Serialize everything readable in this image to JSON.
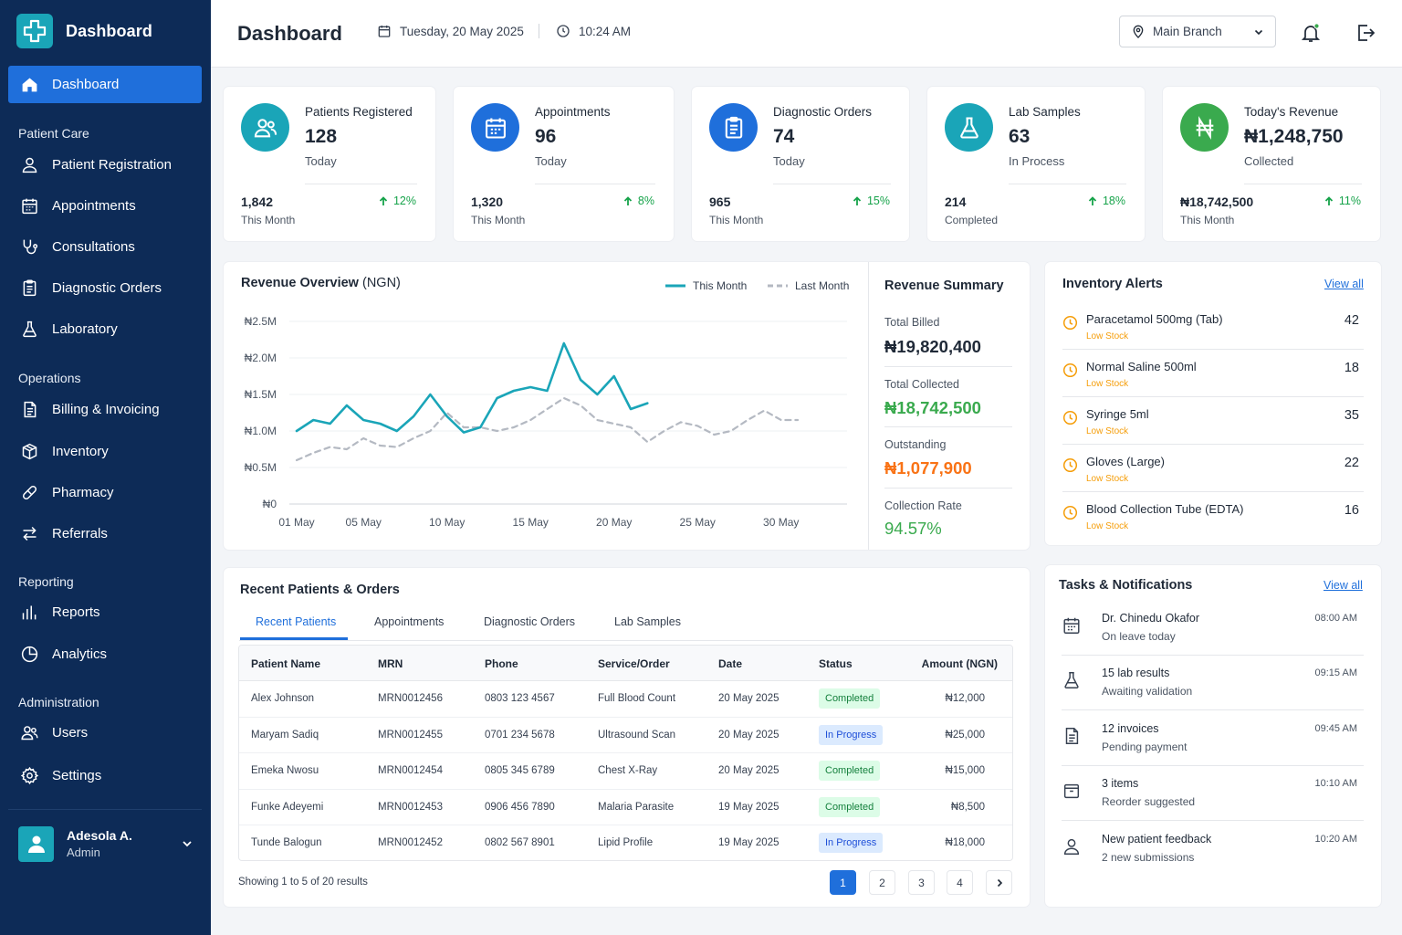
{
  "brand": {
    "name": "Dashboard"
  },
  "sidebar": {
    "active": {
      "label": "Dashboard",
      "icon": "home-icon"
    },
    "groups": [
      {
        "title": "Patient Care",
        "items": [
          {
            "label": "Patient Registration",
            "icon": "user-icon"
          },
          {
            "label": "Appointments",
            "icon": "calendar-icon"
          },
          {
            "label": "Consultations",
            "icon": "stethoscope-icon"
          },
          {
            "label": "Diagnostic Orders",
            "icon": "clipboard-icon"
          },
          {
            "label": "Laboratory",
            "icon": "flask-icon"
          }
        ]
      },
      {
        "title": "Operations",
        "items": [
          {
            "label": "Billing & Invoicing",
            "icon": "invoice-icon"
          },
          {
            "label": "Inventory",
            "icon": "box-icon"
          },
          {
            "label": "Pharmacy",
            "icon": "pill-icon"
          },
          {
            "label": "Referrals",
            "icon": "arrows-icon"
          }
        ]
      },
      {
        "title": "Reporting",
        "items": [
          {
            "label": "Reports",
            "icon": "bar-chart-icon"
          },
          {
            "label": "Analytics",
            "icon": "pie-chart-icon"
          }
        ]
      },
      {
        "title": "Administration",
        "items": [
          {
            "label": "Users",
            "icon": "users-icon"
          },
          {
            "label": "Settings",
            "icon": "gear-icon"
          }
        ]
      }
    ],
    "user": {
      "name": "Adesola A.",
      "role": "Admin"
    }
  },
  "header": {
    "title": "Dashboard",
    "date": "Tuesday, 20 May 2025",
    "time": "10:24 AM",
    "branch": "Main Branch"
  },
  "stats": [
    {
      "label": "Patients Registered",
      "value": "128",
      "sub": "Today",
      "month_value": "1,842",
      "month_label": "This Month",
      "change": "12%",
      "color": "#1aa5b8",
      "icon": "users-icon"
    },
    {
      "label": "Appointments",
      "value": "96",
      "sub": "Today",
      "month_value": "1,320",
      "month_label": "This Month",
      "change": "8%",
      "color": "#1f6fdb",
      "icon": "calendar-icon"
    },
    {
      "label": "Diagnostic Orders",
      "value": "74",
      "sub": "Today",
      "month_value": "965",
      "month_label": "This Month",
      "change": "15%",
      "color": "#1f6fdb",
      "icon": "clipboard-icon"
    },
    {
      "label": "Lab Samples",
      "value": "63",
      "sub": "In Process",
      "month_value": "214",
      "month_label": "Completed",
      "change": "18%",
      "color": "#1aa5b8",
      "icon": "flask-icon"
    },
    {
      "label": "Today's Revenue",
      "value": "₦1,248,750",
      "sub": "Collected",
      "month_value": "₦18,742,500",
      "month_label": "This Month",
      "change": "11%",
      "color": "#3aaa4e",
      "icon": "naira-icon"
    }
  ],
  "revenue": {
    "title": "Revenue Overview",
    "unit": "(NGN)",
    "legend": {
      "this_month": "This Month",
      "last_month": "Last Month"
    }
  },
  "chart_data": {
    "type": "line",
    "title": "Revenue Overview (NGN)",
    "y_ticks": [
      "₦2.5M",
      "₦2.0M",
      "₦1.5M",
      "₦1.0M",
      "₦0.5M",
      "₦0"
    ],
    "x_ticks": [
      "01 May",
      "05 May",
      "10 May",
      "15 May",
      "20 May",
      "25 May",
      "30 May"
    ],
    "x_tick_days": [
      1,
      5,
      10,
      15,
      20,
      25,
      30
    ],
    "ylim": [
      0,
      2500000
    ],
    "series": [
      {
        "name": "This Month",
        "color": "#1aa5b8",
        "style": "solid",
        "x": [
          1,
          2,
          3,
          4,
          5,
          6,
          7,
          8,
          9,
          10,
          11,
          12,
          13,
          14,
          15,
          16,
          17,
          18,
          19,
          20,
          21,
          22
        ],
        "y": [
          1000000,
          1150000,
          1100000,
          1350000,
          1150000,
          1100000,
          1000000,
          1200000,
          1500000,
          1200000,
          980000,
          1050000,
          1450000,
          1550000,
          1600000,
          1550000,
          2200000,
          1700000,
          1500000,
          1750000,
          1300000,
          1380000
        ]
      },
      {
        "name": "Last Month",
        "color": "#b4b9c2",
        "style": "dashed",
        "x": [
          1,
          2,
          3,
          4,
          5,
          6,
          7,
          8,
          9,
          10,
          11,
          12,
          13,
          14,
          15,
          16,
          17,
          18,
          19,
          20,
          21,
          22,
          23,
          24,
          25,
          26,
          27,
          28,
          29,
          30,
          31
        ],
        "y": [
          600000,
          700000,
          780000,
          750000,
          900000,
          800000,
          780000,
          900000,
          1000000,
          1250000,
          1050000,
          1050000,
          1000000,
          1050000,
          1150000,
          1300000,
          1450000,
          1350000,
          1150000,
          1100000,
          1050000,
          850000,
          1000000,
          1120000,
          1070000,
          950000,
          1000000,
          1150000,
          1280000,
          1150000,
          1150000
        ]
      }
    ]
  },
  "summary": {
    "title": "Revenue Summary",
    "items": [
      {
        "label": "Total Billed",
        "value": "₦19,820,400",
        "color": "#1f2937"
      },
      {
        "label": "Total Collected",
        "value": "₦18,742,500",
        "color": "#3aaa4e"
      },
      {
        "label": "Outstanding",
        "value": "₦1,077,900",
        "color": "#f97316"
      },
      {
        "label": "Collection Rate",
        "value": "94.57%",
        "color": "#3aaa4e"
      }
    ]
  },
  "inventory": {
    "title": "Inventory Alerts",
    "view_all": "View all",
    "items": [
      {
        "name": "Paracetamol 500mg (Tab)",
        "tag": "Low Stock",
        "qty": "42"
      },
      {
        "name": "Normal Saline 500ml",
        "tag": "Low Stock",
        "qty": "18"
      },
      {
        "name": "Syringe 5ml",
        "tag": "Low Stock",
        "qty": "35"
      },
      {
        "name": "Gloves (Large)",
        "tag": "Low Stock",
        "qty": "22"
      },
      {
        "name": "Blood Collection Tube (EDTA)",
        "tag": "Low Stock",
        "qty": "16"
      }
    ]
  },
  "recent": {
    "title": "Recent Patients & Orders",
    "tabs": [
      "Recent Patients",
      "Appointments",
      "Diagnostic Orders",
      "Lab Samples"
    ],
    "columns": [
      "Patient Name",
      "MRN",
      "Phone",
      "Service/Order",
      "Date",
      "Status",
      "Amount (NGN)"
    ],
    "rows": [
      {
        "name": "Alex Johnson",
        "mrn": "MRN0012456",
        "phone": "0803 123 4567",
        "service": "Full Blood Count",
        "date": "20 May 2025",
        "status": "Completed",
        "amount": "₦12,000"
      },
      {
        "name": "Maryam Sadiq",
        "mrn": "MRN0012455",
        "phone": "0701 234 5678",
        "service": "Ultrasound Scan",
        "date": "20 May 2025",
        "status": "In Progress",
        "amount": "₦25,000"
      },
      {
        "name": "Emeka Nwosu",
        "mrn": "MRN0012454",
        "phone": "0805 345 6789",
        "service": "Chest X-Ray",
        "date": "20 May 2025",
        "status": "Completed",
        "amount": "₦15,000"
      },
      {
        "name": "Funke Adeyemi",
        "mrn": "MRN0012453",
        "phone": "0906 456 7890",
        "service": "Malaria Parasite",
        "date": "19 May 2025",
        "status": "Completed",
        "amount": "₦8,500"
      },
      {
        "name": "Tunde Balogun",
        "mrn": "MRN0012452",
        "phone": "0802 567 8901",
        "service": "Lipid Profile",
        "date": "19 May 2025",
        "status": "In Progress",
        "amount": "₦18,000"
      }
    ],
    "pagination": {
      "info": "Showing 1 to 5 of 20 results",
      "pages": [
        "1",
        "2",
        "3",
        "4"
      ],
      "current": "1"
    }
  },
  "tasks": {
    "title": "Tasks & Notifications",
    "view_all": "View all",
    "items": [
      {
        "title": "Dr. Chinedu Okafor",
        "sub": "On leave today",
        "time": "08:00 AM",
        "icon": "calendar-icon"
      },
      {
        "title": "15 lab results",
        "sub": "Awaiting validation",
        "time": "09:15 AM",
        "icon": "flask-icon"
      },
      {
        "title": "12 invoices",
        "sub": "Pending payment",
        "time": "09:45 AM",
        "icon": "document-icon"
      },
      {
        "title": "3 items",
        "sub": "Reorder suggested",
        "time": "10:10 AM",
        "icon": "box-icon"
      },
      {
        "title": "New patient feedback",
        "sub": "2 new submissions",
        "time": "10:20 AM",
        "icon": "user-icon"
      }
    ]
  }
}
